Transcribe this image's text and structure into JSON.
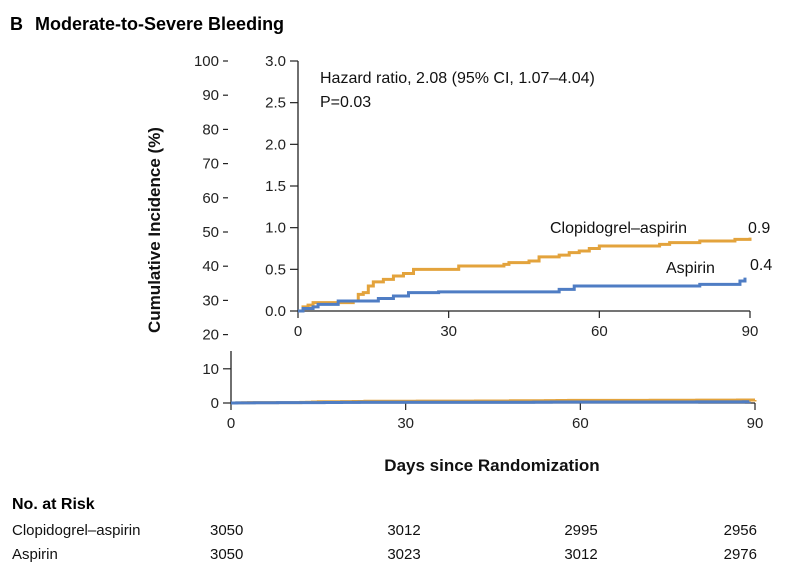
{
  "chart_data": {
    "type": "line",
    "panel_letter": "B",
    "title": "Moderate-to-Severe Bleeding",
    "xlabel": "Days since Randomization",
    "ylabel": "Cumulative Incidence (%)",
    "xlim": [
      0,
      90
    ],
    "ylim": [
      0,
      100
    ],
    "x_ticks": [
      "0",
      "30",
      "60",
      "90"
    ],
    "y_ticks": [
      "0",
      "10",
      "20",
      "30",
      "40",
      "50",
      "60",
      "70",
      "80",
      "90",
      "100"
    ],
    "series": [
      {
        "name": "Clopidogrel–aspirin",
        "color": "#e3a33c",
        "end_label": "0.9",
        "points": [
          [
            0,
            0
          ],
          [
            1,
            0.05
          ],
          [
            2,
            0.07
          ],
          [
            3,
            0.1
          ],
          [
            10,
            0.1
          ],
          [
            11,
            0.12
          ],
          [
            12,
            0.2
          ],
          [
            13,
            0.22
          ],
          [
            14,
            0.3
          ],
          [
            15,
            0.35
          ],
          [
            17,
            0.38
          ],
          [
            19,
            0.42
          ],
          [
            21,
            0.45
          ],
          [
            23,
            0.5
          ],
          [
            31,
            0.5
          ],
          [
            32,
            0.54
          ],
          [
            40,
            0.54
          ],
          [
            41,
            0.56
          ],
          [
            42,
            0.58
          ],
          [
            46,
            0.6
          ],
          [
            48,
            0.65
          ],
          [
            52,
            0.67
          ],
          [
            54,
            0.7
          ],
          [
            56,
            0.72
          ],
          [
            58,
            0.75
          ],
          [
            60,
            0.78
          ],
          [
            71,
            0.78
          ],
          [
            72,
            0.8
          ],
          [
            74,
            0.82
          ],
          [
            80,
            0.84
          ],
          [
            87,
            0.86
          ],
          [
            90,
            0.88
          ]
        ]
      },
      {
        "name": "Aspirin",
        "color": "#4f7dc4",
        "end_label": "0.4",
        "points": [
          [
            0,
            0
          ],
          [
            1,
            0.03
          ],
          [
            3,
            0.05
          ],
          [
            4,
            0.08
          ],
          [
            8,
            0.12
          ],
          [
            16,
            0.15
          ],
          [
            19,
            0.18
          ],
          [
            22,
            0.22
          ],
          [
            27,
            0.22
          ],
          [
            28,
            0.23
          ],
          [
            50,
            0.23
          ],
          [
            52,
            0.26
          ],
          [
            55,
            0.3
          ],
          [
            80,
            0.32
          ],
          [
            88,
            0.36
          ],
          [
            89,
            0.4
          ]
        ]
      }
    ],
    "inset": {
      "xlim": [
        0,
        90
      ],
      "ylim": [
        0,
        3.0
      ],
      "x_ticks": [
        "0",
        "30",
        "60",
        "90"
      ],
      "y_ticks": [
        "0.0",
        "0.5",
        "1.0",
        "1.5",
        "2.0",
        "2.5",
        "3.0"
      ],
      "annotation_line1": "Hazard ratio, 2.08 (95% CI, 1.07–4.04)",
      "annotation_line2": "P=0.03"
    },
    "at_risk": {
      "title": "No. at Risk",
      "rows": [
        {
          "label": "Clopidogrel–aspirin",
          "values": [
            "3050",
            "3012",
            "2995",
            "2956"
          ]
        },
        {
          "label": "Aspirin",
          "values": [
            "3050",
            "3023",
            "3012",
            "2976"
          ]
        }
      ]
    }
  }
}
